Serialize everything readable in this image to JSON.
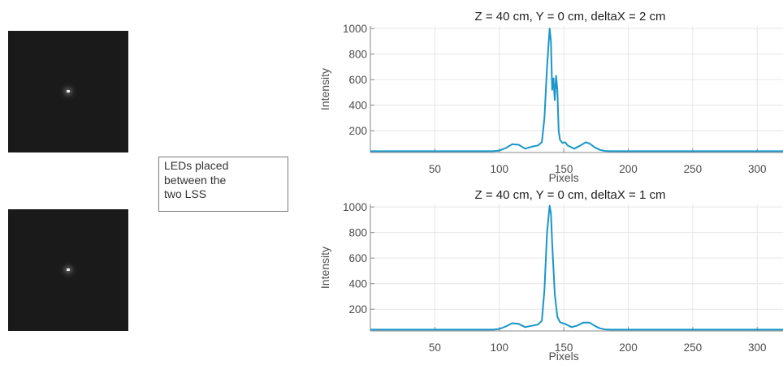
{
  "annotation": {
    "lines": [
      "LEDs placed",
      "between the",
      "two LSS"
    ]
  },
  "colors": {
    "series": "#1a96c9",
    "grid": "#e6e6e6",
    "axis": "#8a8a8a",
    "image_background": "#1a1a1a"
  },
  "chart_data": [
    {
      "type": "line",
      "title": "Z = 40 cm, Y = 0 cm, deltaX = 2 cm",
      "xlabel": "Pixels",
      "ylabel": "Intensity",
      "xlim": [
        0,
        320
      ],
      "ylim": [
        30,
        1020
      ],
      "xticks": [
        50,
        100,
        150,
        200,
        250,
        300
      ],
      "yticks": [
        200,
        400,
        600,
        800,
        1000
      ],
      "grid": true,
      "series": [
        {
          "x": [
            0,
            95,
            100,
            105,
            110,
            115,
            120,
            125,
            130,
            133,
            135,
            137,
            139,
            140,
            141,
            142,
            143,
            144,
            145,
            146,
            147,
            149,
            151,
            153,
            155,
            158,
            160,
            163,
            167,
            170,
            174,
            178,
            182,
            186,
            320
          ],
          "y": [
            40,
            40,
            45,
            65,
            95,
            90,
            60,
            75,
            85,
            110,
            300,
            700,
            1000,
            900,
            520,
            610,
            440,
            630,
            520,
            200,
            130,
            105,
            110,
            85,
            75,
            60,
            70,
            85,
            110,
            100,
            70,
            50,
            42,
            40,
            40
          ]
        }
      ]
    },
    {
      "type": "line",
      "title": "Z = 40 cm, Y = 0 cm, deltaX = 1 cm",
      "xlabel": "Pixels",
      "ylabel": "Intensity",
      "xlim": [
        0,
        320
      ],
      "ylim": [
        30,
        1020
      ],
      "xticks": [
        50,
        100,
        150,
        200,
        250,
        300
      ],
      "yticks": [
        200,
        400,
        600,
        800,
        1000
      ],
      "grid": true,
      "series": [
        {
          "x": [
            0,
            95,
            100,
            105,
            110,
            115,
            120,
            125,
            130,
            133,
            135,
            137,
            139,
            140,
            141,
            143,
            145,
            147,
            149,
            151,
            153,
            156,
            160,
            165,
            170,
            174,
            178,
            182,
            186,
            320
          ],
          "y": [
            40,
            40,
            45,
            65,
            90,
            85,
            60,
            70,
            80,
            110,
            350,
            800,
            1010,
            950,
            720,
            320,
            140,
            100,
            90,
            85,
            75,
            60,
            70,
            95,
            95,
            70,
            50,
            42,
            40,
            40
          ]
        }
      ]
    }
  ]
}
